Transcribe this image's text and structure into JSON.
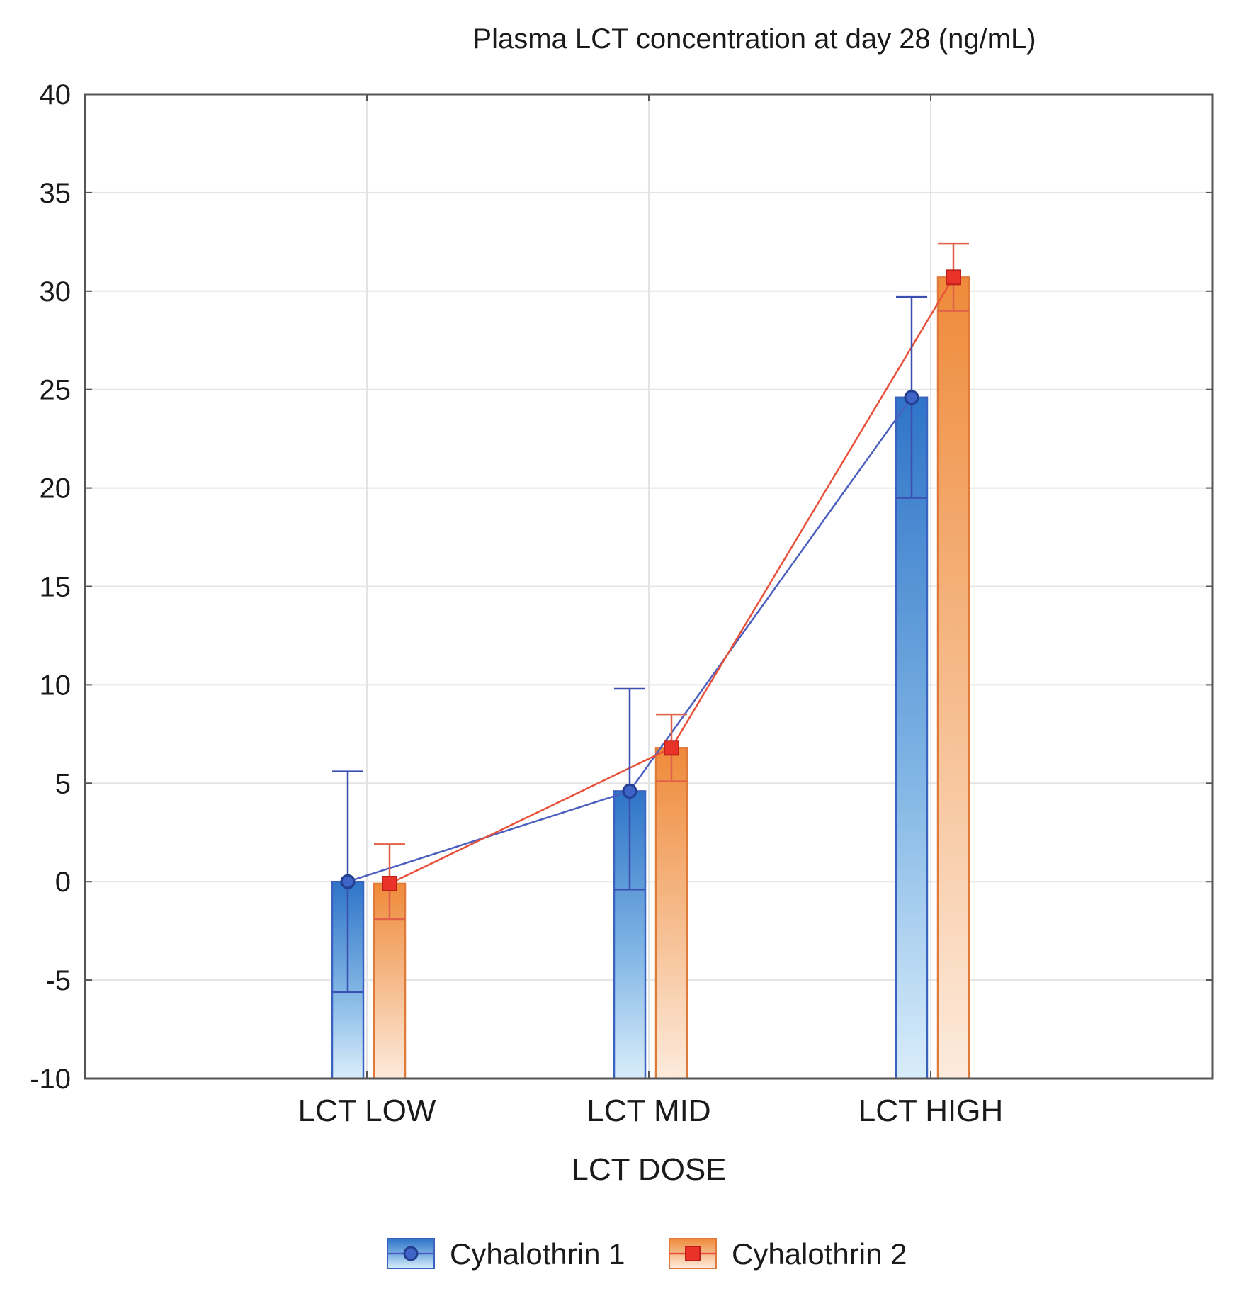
{
  "chart_data": {
    "type": "bar",
    "title": "Plasma LCT concentration at day 28 (ng/mL)",
    "xlabel": "LCT DOSE",
    "ylabel": "",
    "categories": [
      "LCT LOW",
      "LCT MID",
      "LCT HIGH"
    ],
    "ylim": [
      -10,
      40
    ],
    "yticks": [
      -10,
      -5,
      0,
      5,
      10,
      15,
      20,
      25,
      30,
      35,
      40
    ],
    "grid": true,
    "legend_position": "bottom-center",
    "series": [
      {
        "name": "Cyhalothrin 1",
        "marker": "circle",
        "color": "#2f63c4",
        "light_color": "#d6ecfb",
        "values": [
          0,
          4.6,
          24.6
        ],
        "error_lower": [
          -5.6,
          -0.4,
          19.5
        ],
        "error_upper": [
          5.6,
          9.8,
          29.7
        ]
      },
      {
        "name": "Cyhalothrin 2",
        "marker": "square",
        "color": "#e8322a",
        "bar_color": "#f08a3c",
        "light_color": "#fde9da",
        "values": [
          -0.1,
          6.8,
          30.7
        ],
        "error_lower": [
          -1.9,
          5.1,
          29.0
        ],
        "error_upper": [
          1.9,
          8.5,
          32.4
        ]
      }
    ]
  }
}
